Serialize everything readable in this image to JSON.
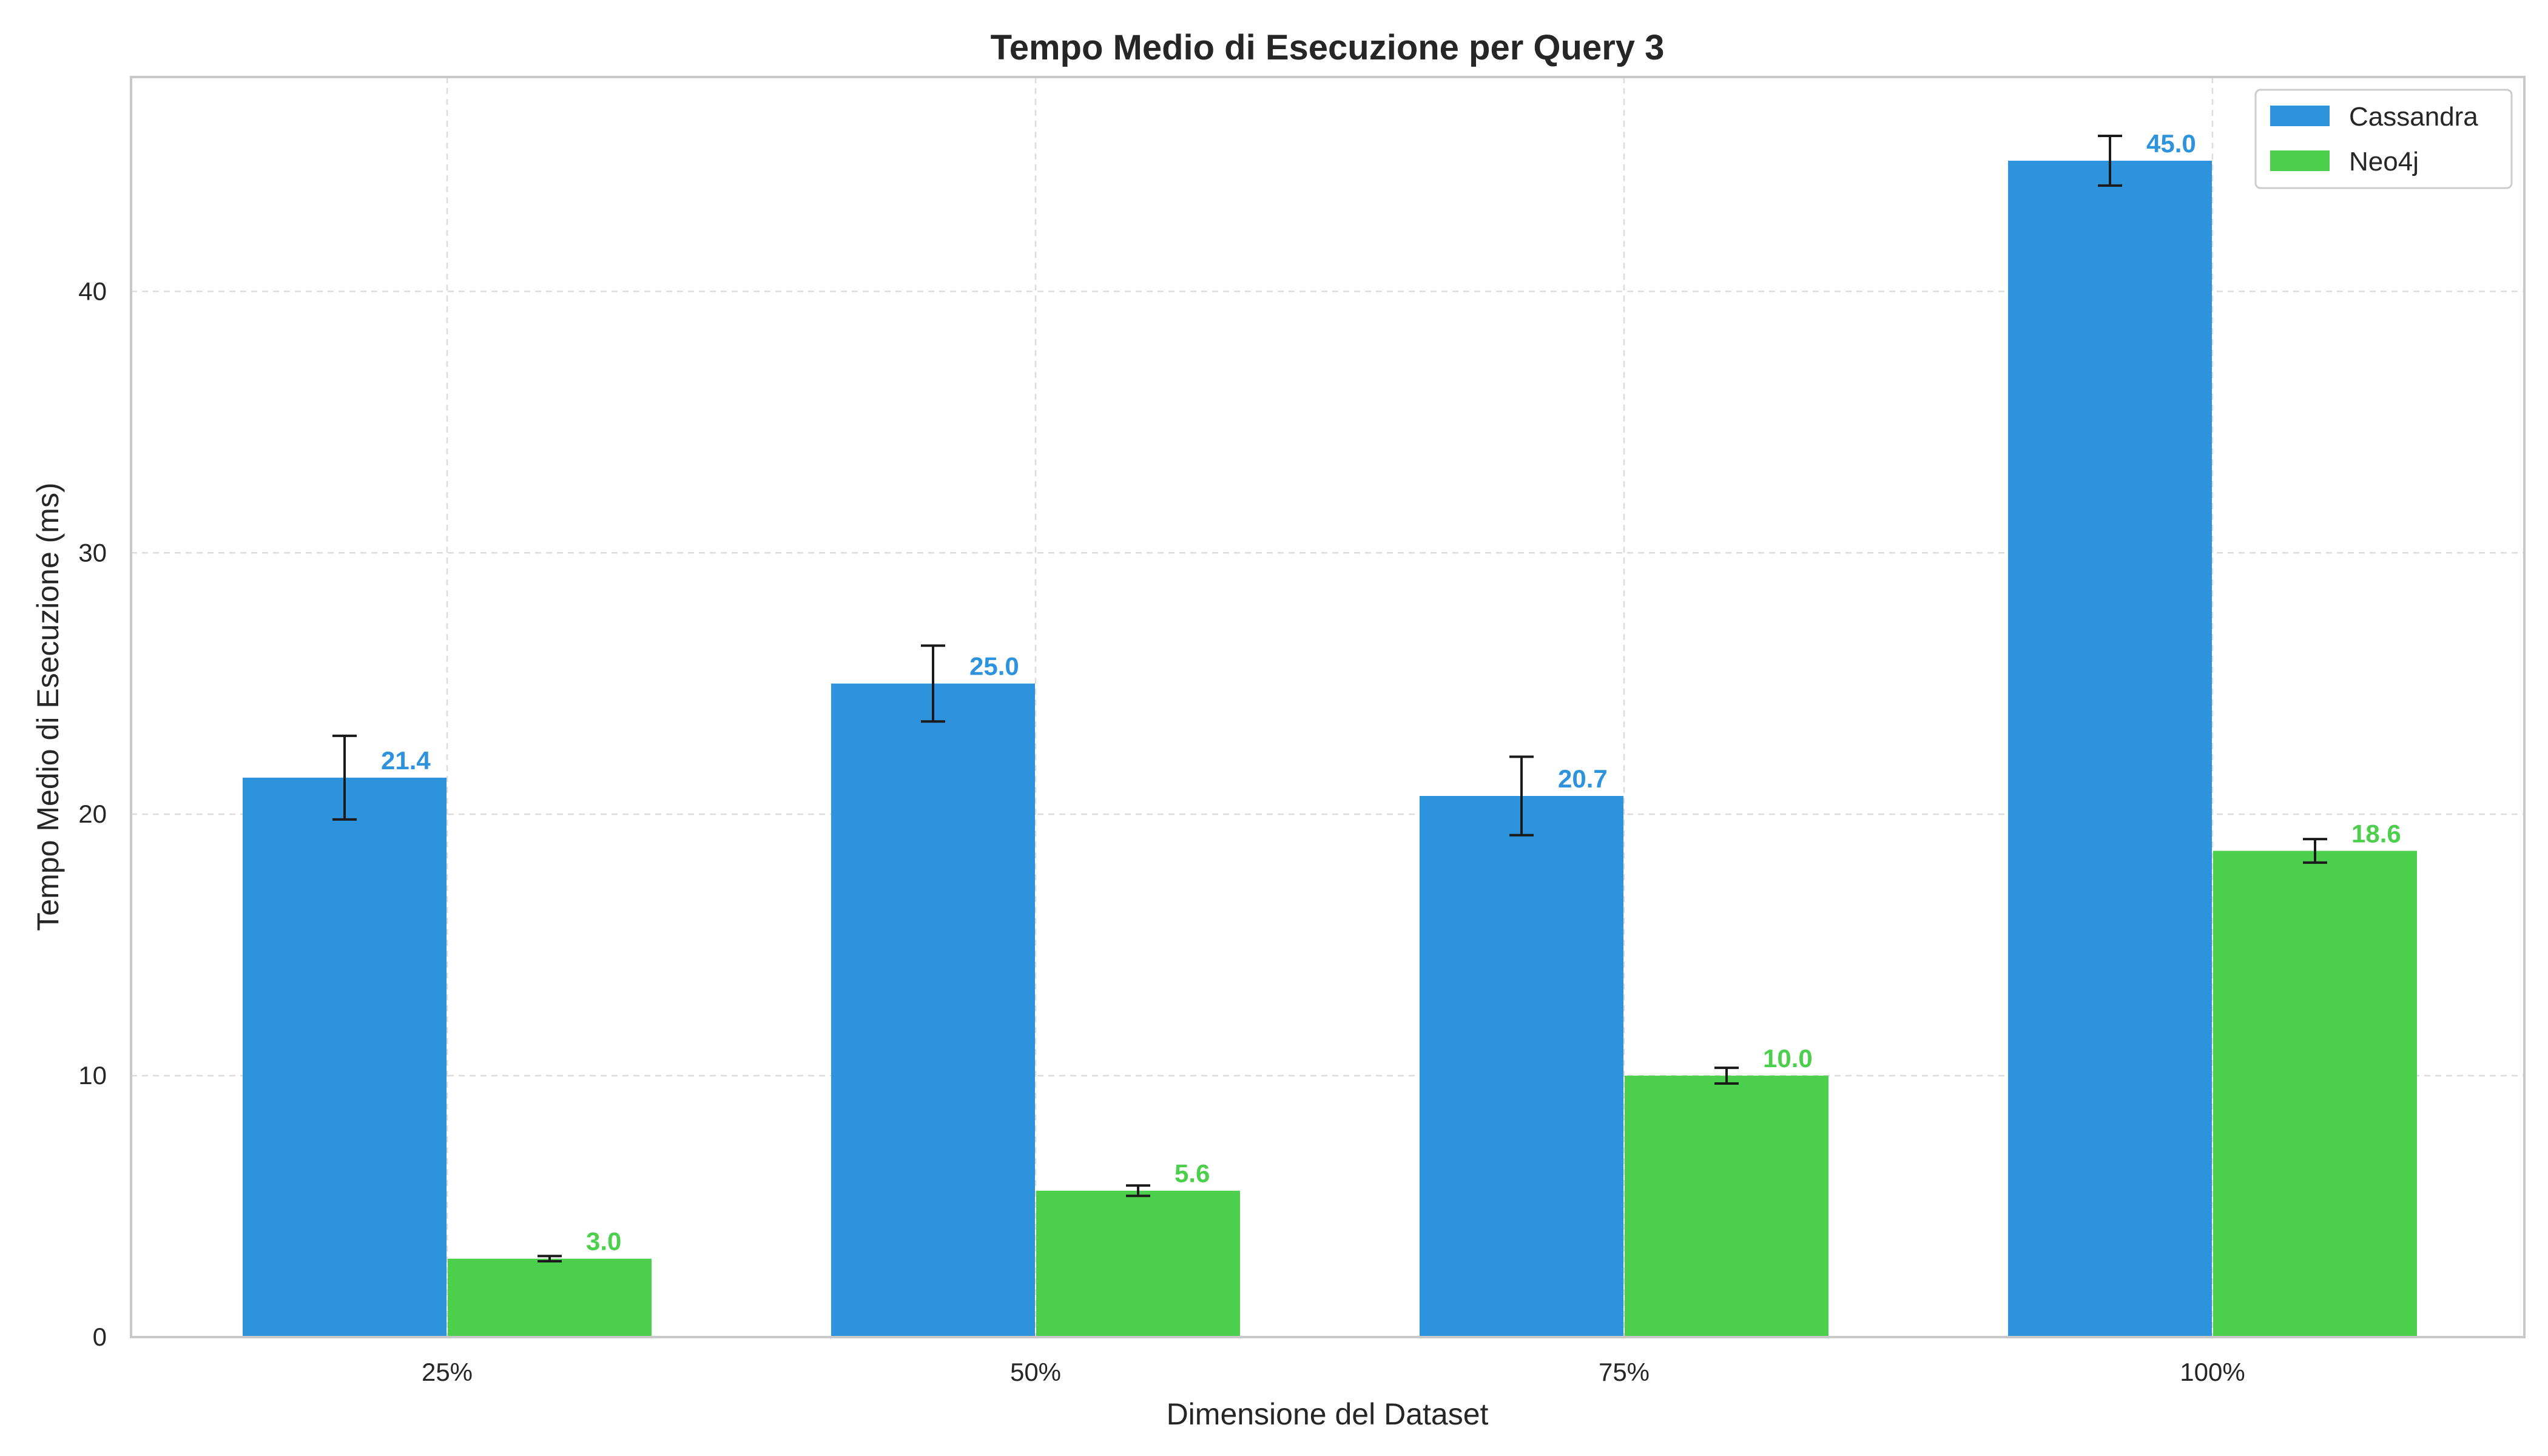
{
  "chart_data": {
    "type": "bar",
    "title": "Tempo Medio di Esecuzione per Query 3",
    "xlabel": "Dimensione del Dataset",
    "ylabel": "Tempo Medio di Esecuzione (ms)",
    "categories": [
      "25%",
      "50%",
      "75%",
      "100%"
    ],
    "ylim": [
      0,
      48.2
    ],
    "yticks": [
      0,
      10,
      20,
      30,
      40
    ],
    "grid": true,
    "legend_position": "top-right",
    "series": [
      {
        "name": "Cassandra",
        "color": "#2d93dc",
        "values": [
          21.4,
          25.0,
          20.7,
          45.0
        ],
        "errors": [
          1.6,
          1.45,
          1.5,
          0.95
        ],
        "labels": [
          "21.4",
          "25.0",
          "20.7",
          "45.0"
        ]
      },
      {
        "name": "Neo4j",
        "color": "#4ccf4c",
        "values": [
          3.0,
          5.6,
          10.0,
          18.6
        ],
        "errors": [
          0.1,
          0.2,
          0.3,
          0.45
        ],
        "labels": [
          "3.0",
          "5.6",
          "10.0",
          "18.6"
        ]
      }
    ]
  }
}
